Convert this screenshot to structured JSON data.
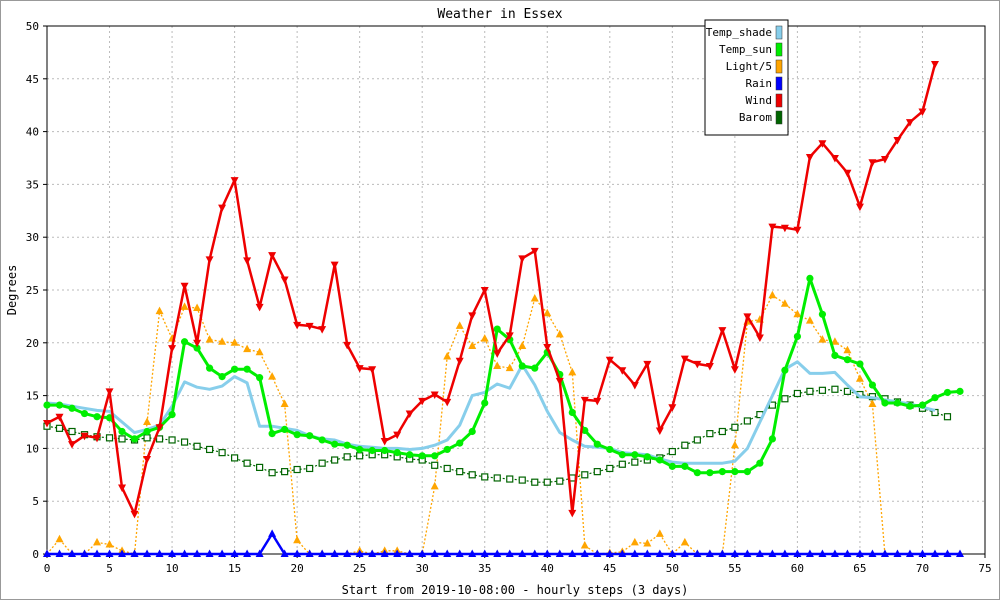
{
  "chart_data": {
    "type": "line",
    "title": "Weather in Essex",
    "xlabel": "Start from 2019-10-08:00 - hourly steps (3 days)",
    "ylabel": "Degrees",
    "xlim": [
      0,
      75
    ],
    "ylim": [
      0,
      50
    ],
    "xticks": [
      0,
      5,
      10,
      15,
      20,
      25,
      30,
      35,
      40,
      45,
      50,
      55,
      60,
      65,
      70,
      75
    ],
    "yticks": [
      0,
      5,
      10,
      15,
      20,
      25,
      30,
      35,
      40,
      45,
      50
    ],
    "grid": true,
    "legend_position": "top-right",
    "series": [
      {
        "name": "Temp_shade",
        "color": "#87ceeb",
        "marker": "none",
        "values": [
          14.3,
          14.2,
          14.0,
          13.8,
          13.6,
          13.5,
          12.5,
          11.5,
          11.8,
          12.2,
          14.0,
          16.3,
          15.8,
          15.6,
          15.9,
          16.8,
          16.2,
          12.1,
          12.1,
          11.9,
          11.7,
          11.2,
          10.9,
          10.8,
          10.4,
          10.2,
          10.1,
          10.0,
          10.0,
          9.9,
          10.0,
          10.3,
          10.8,
          12.2,
          15.0,
          15.3,
          16.1,
          15.7,
          17.9,
          16.0,
          13.5,
          11.5,
          10.8,
          10.2,
          10.1,
          10.0,
          9.6,
          9.5,
          9.4,
          9.0,
          8.7,
          8.6,
          8.6,
          8.6,
          8.6,
          8.8,
          10.0,
          12.5,
          15.0,
          17.5,
          18.2,
          17.1,
          17.1,
          17.2,
          16.0,
          14.9,
          14.8,
          14.6,
          14.4,
          14.2,
          13.9,
          13.6
        ]
      },
      {
        "name": "Temp_sun",
        "color": "#00ee00",
        "marker": "circle",
        "values": [
          14.1,
          14.1,
          13.8,
          13.3,
          13.0,
          12.9,
          11.6,
          10.9,
          11.6,
          12.0,
          13.2,
          20.1,
          19.5,
          17.6,
          16.8,
          17.5,
          17.5,
          16.7,
          11.4,
          11.8,
          11.3,
          11.2,
          10.8,
          10.4,
          10.3,
          9.9,
          9.8,
          9.8,
          9.6,
          9.4,
          9.3,
          9.3,
          9.9,
          10.5,
          11.6,
          14.3,
          21.3,
          20.3,
          17.8,
          17.6,
          19.1,
          17.0,
          13.4,
          11.7,
          10.4,
          9.9,
          9.4,
          9.4,
          9.2,
          8.9,
          8.3,
          8.3,
          7.7,
          7.7,
          7.8,
          7.8,
          7.8,
          8.6,
          10.9,
          17.4,
          20.6,
          26.1,
          22.7,
          18.8,
          18.4,
          18.0,
          16.0,
          14.3,
          14.3,
          14.0,
          14.1,
          14.8,
          15.3,
          15.4
        ]
      },
      {
        "name": "Light/5",
        "color": "#ffa500",
        "marker": "triangle-up",
        "values": [
          0,
          1.4,
          0,
          0,
          1.1,
          0.9,
          0.3,
          0,
          12.5,
          23.0,
          20.4,
          23.4,
          23.3,
          20.3,
          20.1,
          20.0,
          19.4,
          19.1,
          16.8,
          14.2,
          1.3,
          0,
          0,
          0,
          0,
          0.3,
          0,
          0.3,
          0.3,
          0,
          0,
          6.4,
          18.7,
          21.6,
          19.7,
          20.4,
          17.8,
          17.6,
          19.7,
          24.2,
          22.8,
          20.8,
          17.2,
          0.8,
          0,
          0.1,
          0.2,
          1.1,
          1.0,
          1.9,
          0,
          1.1,
          0,
          0,
          0,
          10.3,
          22.0,
          22.2,
          24.5,
          23.7,
          22.7,
          22.1,
          20.3,
          20.1,
          19.3,
          16.6,
          14.2,
          0
        ]
      },
      {
        "name": "Rain",
        "color": "#0000ff",
        "marker": "triangle-up",
        "values": [
          0,
          0,
          0,
          0,
          0,
          0,
          0,
          0,
          0,
          0,
          0,
          0,
          0,
          0,
          0,
          0,
          0,
          0,
          1.9,
          0,
          0,
          0,
          0,
          0,
          0,
          0,
          0,
          0,
          0,
          0,
          0,
          0,
          0,
          0,
          0,
          0,
          0,
          0,
          0,
          0,
          0,
          0,
          0,
          0,
          0,
          0,
          0,
          0,
          0,
          0,
          0,
          0,
          0,
          0,
          0,
          0,
          0,
          0,
          0,
          0,
          0,
          0,
          0,
          0,
          0,
          0,
          0,
          0,
          0,
          0,
          0,
          0,
          0,
          0
        ]
      },
      {
        "name": "Wind",
        "color": "#ee0000",
        "marker": "triangle-down",
        "values": [
          12.4,
          13.0,
          10.4,
          11.2,
          11.0,
          15.4,
          6.3,
          3.8,
          9.0,
          12.0,
          19.5,
          25.4,
          20.0,
          27.9,
          32.8,
          35.4,
          27.8,
          23.4,
          28.3,
          26.0,
          21.7,
          21.6,
          21.3,
          27.4,
          19.8,
          17.6,
          17.5,
          10.7,
          11.3,
          13.3,
          14.5,
          15.1,
          14.4,
          18.3,
          22.6,
          25.0,
          19.0,
          20.7,
          28.0,
          28.7,
          19.6,
          16.4,
          3.9,
          14.6,
          14.5,
          18.4,
          17.4,
          16.0,
          18.0,
          11.7,
          13.9,
          18.5,
          18.0,
          17.8,
          21.2,
          17.5,
          22.5,
          20.5,
          31.0,
          30.9,
          30.7,
          37.6,
          38.9,
          37.5,
          36.1,
          32.9,
          37.1,
          37.4,
          39.2,
          40.9,
          41.9,
          46.4
        ]
      },
      {
        "name": "Barom",
        "color": "#006400",
        "marker": "square",
        "values": [
          12.1,
          11.9,
          11.6,
          11.3,
          11.1,
          11.0,
          10.9,
          10.8,
          11.0,
          10.9,
          10.8,
          10.6,
          10.2,
          9.9,
          9.6,
          9.1,
          8.6,
          8.2,
          7.7,
          7.8,
          8.0,
          8.1,
          8.6,
          8.9,
          9.2,
          9.3,
          9.4,
          9.4,
          9.2,
          9.0,
          8.9,
          8.4,
          8.1,
          7.8,
          7.5,
          7.3,
          7.2,
          7.1,
          7.0,
          6.8,
          6.8,
          6.9,
          7.2,
          7.5,
          7.8,
          8.1,
          8.5,
          8.7,
          8.9,
          9.1,
          9.7,
          10.3,
          10.8,
          11.4,
          11.6,
          12.0,
          12.6,
          13.2,
          14.1,
          14.7,
          15.2,
          15.4,
          15.5,
          15.6,
          15.4,
          15.1,
          14.9,
          14.7,
          14.4,
          14.1,
          13.8,
          13.4,
          13.0
        ]
      }
    ]
  }
}
